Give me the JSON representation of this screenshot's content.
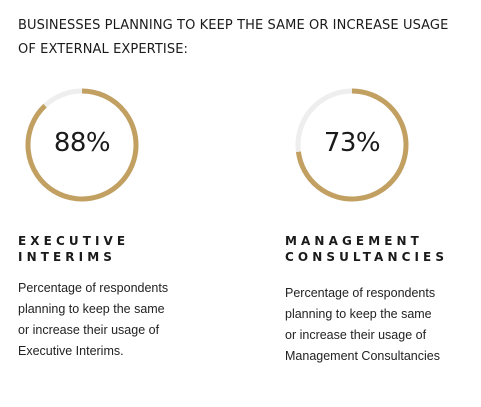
{
  "header": {
    "title_line_1": "BUSINESSES PLANNING TO KEEP THE SAME OR INCREASE USAGE",
    "title_line_2": "OF EXTERNAL EXPERTISE:"
  },
  "colors": {
    "accent": "#c2a062",
    "track": "#eeeeee",
    "text": "#1a1a1a"
  },
  "chart_data": {
    "type": "pie",
    "title": "BUSINESSES PLANNING TO KEEP THE SAME OR INCREASE USAGE OF EXTERNAL EXPERTISE:",
    "categories": [
      "EXECUTIVE INTERIMS",
      "MANAGEMENT CONSULTANCIES"
    ],
    "values": [
      88,
      73
    ],
    "unit": "%",
    "max": 100,
    "value_labels": [
      "88%",
      "73%"
    ]
  },
  "columns": [
    {
      "heading_line_1": "EXECUTIVE",
      "heading_line_2": "INTERIMS",
      "desc_lines": [
        "Percentage of respondents",
        "planning to keep the same",
        "or increase their usage of",
        "Executive Interims."
      ]
    },
    {
      "heading_line_1": "MANAGEMENT",
      "heading_line_2": "CONSULTANCIES",
      "desc_lines": [
        "Percentage of respondents",
        "planning to keep the same",
        "or increase their usage of",
        "Management Consultancies"
      ]
    }
  ]
}
